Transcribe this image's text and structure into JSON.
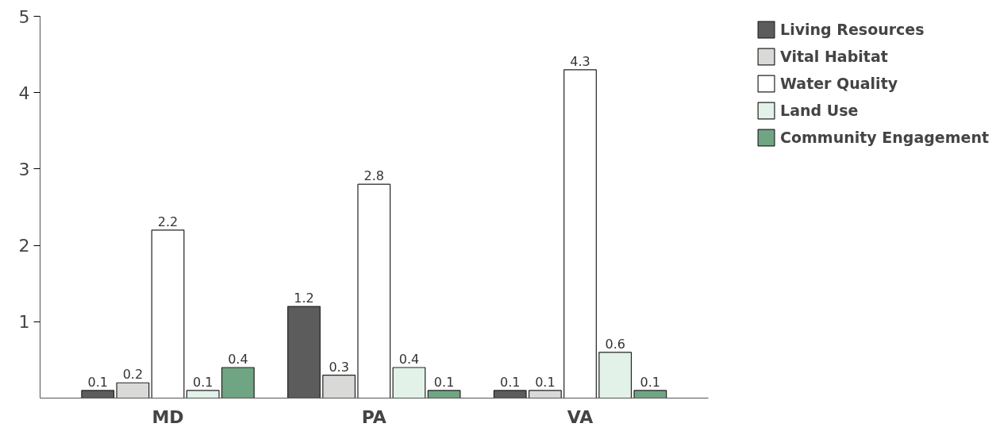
{
  "chart_data": {
    "type": "bar",
    "categories": [
      "MD",
      "PA",
      "VA"
    ],
    "series": [
      {
        "name": "Living Resources",
        "color": "#5c5c5c",
        "values": [
          0.1,
          1.2,
          0.1
        ]
      },
      {
        "name": "Vital Habitat",
        "color": "#d9dad8",
        "values": [
          0.2,
          0.3,
          0.1
        ]
      },
      {
        "name": "Water Quality",
        "color": "#ffffff",
        "values": [
          2.2,
          2.8,
          4.3
        ]
      },
      {
        "name": "Land Use",
        "color": "#e2f2e8",
        "values": [
          0.1,
          0.4,
          0.6
        ]
      },
      {
        "name": "Community Engagement",
        "color": "#6fa583",
        "values": [
          0.4,
          0.1,
          0.1
        ]
      }
    ],
    "ylim": [
      0,
      5
    ],
    "yticks": [
      1,
      2,
      3,
      4,
      5
    ],
    "grid": false,
    "legend": "right",
    "data_labels": true
  }
}
